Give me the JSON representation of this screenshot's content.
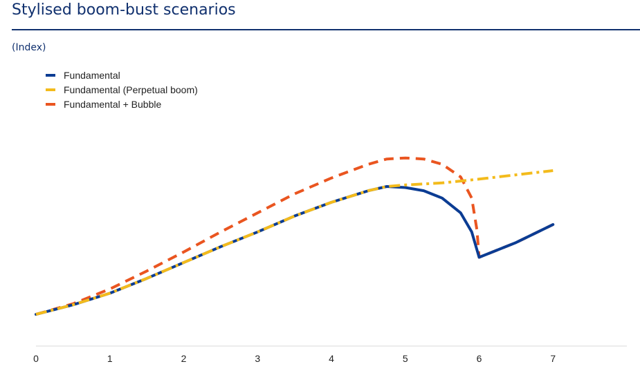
{
  "header": {
    "title": "Stylised boom-bust scenarios",
    "subtitle": "(Index)"
  },
  "chart_data": {
    "type": "line",
    "title": "Stylised boom-bust scenarios",
    "ylabel": "(Index)",
    "xlabel": "",
    "x_ticks": [
      0,
      1,
      2,
      3,
      4,
      5,
      6,
      7
    ],
    "xlim": [
      0,
      8
    ],
    "ylim": [
      0,
      100
    ],
    "grid": false,
    "legend_position": "top-left",
    "series": [
      {
        "name": "Fundamental",
        "color": "#0b3c93",
        "style": "solid",
        "points": [
          [
            0,
            15
          ],
          [
            0.5,
            19.5
          ],
          [
            1,
            25
          ],
          [
            1.5,
            32
          ],
          [
            2,
            39.5
          ],
          [
            2.5,
            47
          ],
          [
            3,
            54
          ],
          [
            3.5,
            61.5
          ],
          [
            4,
            68
          ],
          [
            4.5,
            73.5
          ],
          [
            4.75,
            75.5
          ],
          [
            5,
            75
          ],
          [
            5.25,
            73.5
          ],
          [
            5.5,
            70
          ],
          [
            5.75,
            63
          ],
          [
            5.9,
            54
          ],
          [
            6,
            42
          ],
          [
            6.5,
            49
          ],
          [
            7,
            57.5
          ]
        ]
      },
      {
        "name": "Fundamental (Perpetual boom)",
        "color": "#f3bb1c",
        "style": "dashdot",
        "points": [
          [
            0,
            15
          ],
          [
            0.5,
            19.5
          ],
          [
            1,
            25
          ],
          [
            1.5,
            32
          ],
          [
            2,
            39.5
          ],
          [
            2.5,
            47
          ],
          [
            3,
            54
          ],
          [
            3.5,
            61.5
          ],
          [
            4,
            68
          ],
          [
            4.5,
            73.5
          ],
          [
            4.75,
            75.5
          ],
          [
            5,
            76.2
          ],
          [
            5.5,
            77.2
          ],
          [
            6,
            79
          ],
          [
            6.5,
            81
          ],
          [
            7,
            83
          ]
        ]
      },
      {
        "name": "Fundamental + Bubble",
        "color": "#ea5520",
        "style": "dashed",
        "points": [
          [
            0,
            15
          ],
          [
            0.5,
            20
          ],
          [
            1,
            27
          ],
          [
            1.5,
            35.5
          ],
          [
            2,
            44.5
          ],
          [
            2.5,
            54
          ],
          [
            3,
            63
          ],
          [
            3.5,
            72
          ],
          [
            4,
            79.5
          ],
          [
            4.5,
            86
          ],
          [
            4.75,
            88.5
          ],
          [
            5,
            89
          ],
          [
            5.25,
            88.5
          ],
          [
            5.5,
            86
          ],
          [
            5.75,
            80
          ],
          [
            5.9,
            70
          ],
          [
            5.97,
            55
          ],
          [
            6,
            42
          ],
          [
            6.5,
            49
          ],
          [
            7,
            57.5
          ]
        ]
      }
    ]
  }
}
